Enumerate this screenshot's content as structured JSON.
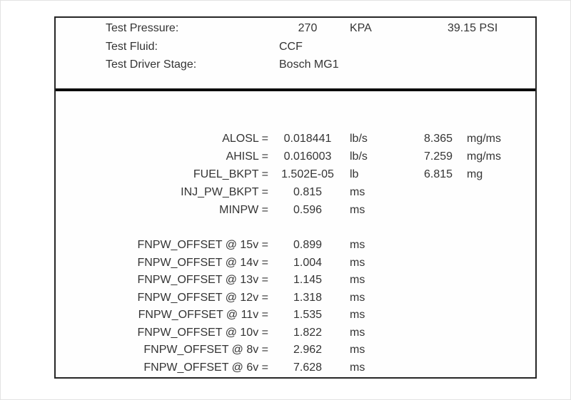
{
  "header": {
    "rows": [
      {
        "label": "Test Pressure:",
        "value": "270",
        "unit": "KPA",
        "alt": "39.15 PSI"
      },
      {
        "label": "Test Fluid:",
        "value": "CCF",
        "unit": "",
        "alt": ""
      },
      {
        "label": "Test Driver Stage:",
        "value": "Bosch MG1",
        "unit": "",
        "alt": ""
      }
    ]
  },
  "parameters": {
    "rows": [
      {
        "label": "ALOSL =",
        "value": "0.018441",
        "unit": "lb/s",
        "value2": "8.365",
        "unit2": "mg/ms"
      },
      {
        "label": "AHISL =",
        "value": "0.016003",
        "unit": "lb/s",
        "value2": "7.259",
        "unit2": "mg/ms"
      },
      {
        "label": "FUEL_BKPT =",
        "value": "1.502E-05",
        "unit": "lb",
        "value2": "6.815",
        "unit2": "mg"
      },
      {
        "label": "INJ_PW_BKPT =",
        "value": "0.815",
        "unit": "ms",
        "value2": "",
        "unit2": ""
      },
      {
        "label": "MINPW =",
        "value": "0.596",
        "unit": "ms",
        "value2": "",
        "unit2": ""
      }
    ]
  },
  "offsets": {
    "rows": [
      {
        "label": "FNPW_OFFSET @ 15v =",
        "value": "0.899",
        "unit": "ms"
      },
      {
        "label": "FNPW_OFFSET @ 14v =",
        "value": "1.004",
        "unit": "ms"
      },
      {
        "label": "FNPW_OFFSET @ 13v =",
        "value": "1.145",
        "unit": "ms"
      },
      {
        "label": "FNPW_OFFSET @ 12v =",
        "value": "1.318",
        "unit": "ms"
      },
      {
        "label": "FNPW_OFFSET @ 11v =",
        "value": "1.535",
        "unit": "ms"
      },
      {
        "label": "FNPW_OFFSET @ 10v =",
        "value": "1.822",
        "unit": "ms"
      },
      {
        "label": "FNPW_OFFSET @ 8v =",
        "value": "2.962",
        "unit": "ms"
      },
      {
        "label": "FNPW_OFFSET @ 6v =",
        "value": "7.628",
        "unit": "ms"
      }
    ]
  },
  "colors": {
    "text": "#343434",
    "box_border": "#262626",
    "divider": "#0a0a0a",
    "background": "#ffffff"
  }
}
